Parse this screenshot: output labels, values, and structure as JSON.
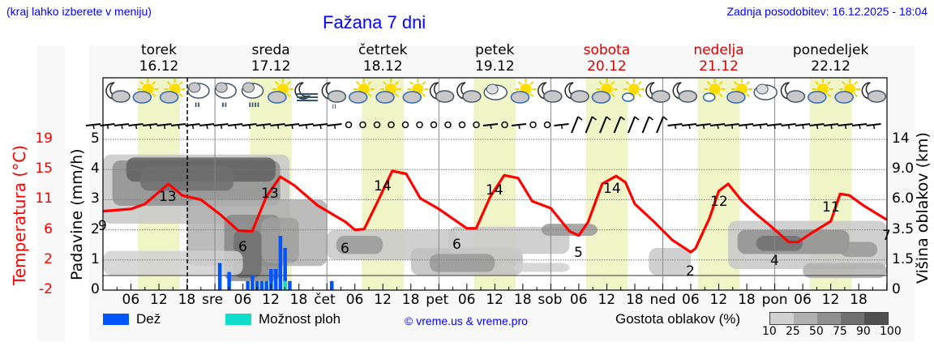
{
  "header": {
    "hint": "(kraj lahko izberete v meniju)",
    "title": "Fažana 7 dni",
    "updated": "Zadnja posodobitev: 16.12.2025 - 18:04"
  },
  "days": [
    {
      "name": "torek",
      "date": "16.12",
      "weekend": false
    },
    {
      "name": "sreda",
      "date": "17.12",
      "weekend": false
    },
    {
      "name": "četrtek",
      "date": "18.12",
      "weekend": false
    },
    {
      "name": "petek",
      "date": "19.12",
      "weekend": false
    },
    {
      "name": "sobota",
      "date": "20.12",
      "weekend": true
    },
    {
      "name": "nedelja",
      "date": "21.12",
      "weekend": true
    },
    {
      "name": "ponedeljek",
      "date": "22.12",
      "weekend": false
    }
  ],
  "x_ticks": [
    "06",
    "12",
    "18",
    "sre",
    "06",
    "12",
    "18",
    "čet",
    "06",
    "12",
    "18",
    "pet",
    "06",
    "12",
    "18",
    "sob",
    "06",
    "12",
    "18",
    "ned",
    "06",
    "12",
    "18",
    "pon",
    "06",
    "12",
    "18"
  ],
  "axes": {
    "left_label": "Padavine (mm/h)",
    "temp_label": "Temperatura (°C)",
    "right_label": "Višina oblakov (km)",
    "precip_ticks": [
      "0",
      "1",
      "2",
      "3",
      "4",
      "5"
    ],
    "temp_ticks": [
      "-2",
      "2",
      "6",
      "11",
      "15",
      "19"
    ],
    "cloud_height_ticks": [
      "0",
      "1.5",
      "3.5",
      "6.0",
      "9.0",
      "14"
    ]
  },
  "legend": {
    "rain": "Dež",
    "showers": "Možnost ploh",
    "copyright": "© vreme.us & vreme.pro",
    "density_label": "Gostota oblakov (%)",
    "density_ticks": [
      "10",
      "25",
      "50",
      "75",
      "90",
      "100"
    ],
    "density_colors": [
      "#d0d0d0",
      "#b0b0b0",
      "#909090",
      "#707070",
      "#505050"
    ]
  },
  "colors": {
    "temperature": "#ff0000",
    "rain": "#0055ff",
    "showers": "#11ddcc",
    "daylight": "#f0f5c8",
    "weekend_text": "#dd0000",
    "link": "#0000ff"
  },
  "icons": [
    "night-partly-cloudy",
    "sun-cloud",
    "sun-cloud",
    "rain-cloud",
    "rain-cloud",
    "rain-cloud-heavy",
    "sun-cloud",
    "night-fog",
    "night-rain",
    "sun-cloud",
    "sun-cloud",
    "sun-cloud",
    "night-partly-cloudy",
    "night-partly-cloudy",
    "cloudy",
    "sun-cloud",
    "night-partly-cloudy",
    "night-partly-cloudy",
    "sun-cloud",
    "sun-small-cloud",
    "night-partly-cloudy",
    "night-partly-cloudy",
    "sun-small-cloud",
    "sun-cloud",
    "cloudy",
    "night-partly-cloudy",
    "sun-cloud",
    "sun-cloud",
    "night-partly-cloudy"
  ],
  "chart_data": {
    "type": "line",
    "title": "Fažana 7 dni",
    "xlabel": "",
    "ylabel": "Temperatura (°C)",
    "x_hours": [
      0,
      6,
      12,
      18,
      24,
      30,
      36,
      42,
      48,
      54,
      60,
      66,
      72,
      78,
      84,
      90,
      96,
      102,
      108,
      114,
      120,
      126,
      132,
      138,
      144,
      150,
      156,
      162,
      168
    ],
    "series": [
      {
        "name": "Temperatura (°C)",
        "color": "#ff0000",
        "labels": [
          {
            "hour": 0,
            "value": 9
          },
          {
            "hour": 14,
            "value": 13
          },
          {
            "hour": 30,
            "value": 6
          },
          {
            "hour": 36,
            "value": 13
          },
          {
            "hour": 54,
            "value": 6
          },
          {
            "hour": 62,
            "value": 14
          },
          {
            "hour": 78,
            "value": 6
          },
          {
            "hour": 86,
            "value": 14
          },
          {
            "hour": 102,
            "value": 5
          },
          {
            "hour": 110,
            "value": 14
          },
          {
            "hour": 126,
            "value": 2
          },
          {
            "hour": 134,
            "value": 12
          },
          {
            "hour": 150,
            "value": 4
          },
          {
            "hour": 158,
            "value": 11
          },
          {
            "hour": 168,
            "value": 7
          }
        ]
      },
      {
        "name": "Dež (mm/h)",
        "color": "#0055ff",
        "bars": [
          {
            "hour": 25,
            "value": 0.9
          },
          {
            "hour": 27,
            "value": 0.6
          },
          {
            "hour": 31,
            "value": 0.3
          },
          {
            "hour": 32,
            "value": 0.5
          },
          {
            "hour": 33,
            "value": 0.3
          },
          {
            "hour": 34,
            "value": 0.3
          },
          {
            "hour": 35,
            "value": 0.3
          },
          {
            "hour": 36,
            "value": 0.7
          },
          {
            "hour": 37,
            "value": 0.7
          },
          {
            "hour": 38,
            "value": 1.8
          },
          {
            "hour": 39,
            "value": 1.4
          },
          {
            "hour": 40,
            "value": 0.3
          },
          {
            "hour": 49,
            "value": 0.3
          }
        ]
      },
      {
        "name": "Možnost ploh",
        "color": "#11ddcc",
        "bars": [
          {
            "hour": 39,
            "value": 0.3
          }
        ]
      }
    ],
    "ylim_precip": [
      0,
      5
    ],
    "temp_axis_ticks": [
      -2,
      2,
      6,
      11,
      15,
      19
    ],
    "cloud_height_ticks_km": [
      0,
      1.5,
      3.5,
      6.0,
      9.0,
      14
    ],
    "grid": true,
    "legend_position": "bottom"
  }
}
